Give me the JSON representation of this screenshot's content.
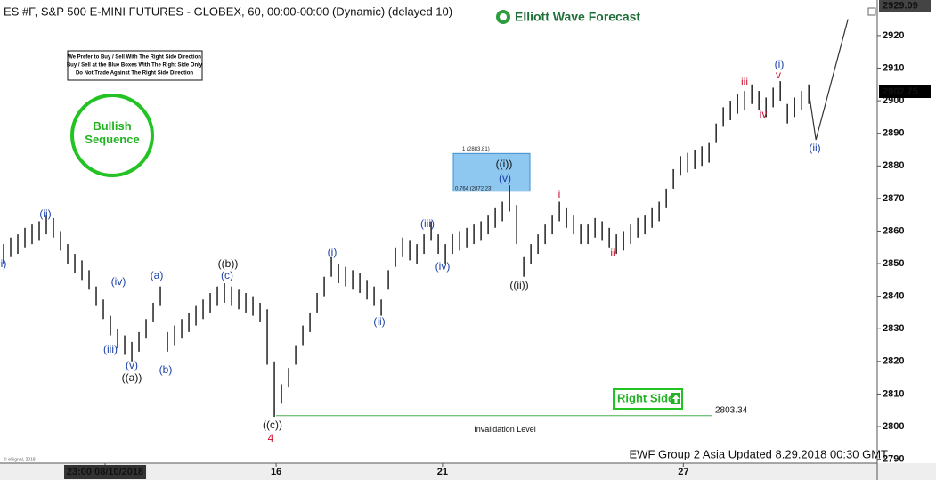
{
  "chart_data": {
    "type": "ohlc",
    "title": "ES #F, S&P 500 E-MINI FUTURES - GLOBEX, 60, 00:00-00:00 (Dynamic) (delayed 10)",
    "logo": "Elliott Wave Forecast",
    "notice": [
      "We Prefer to Buy / Sell With The Right Side Direction",
      "Buy / Sell at the Blue Boxes With The Right Side Only",
      "Do Not Trade Against The Right Side Direction"
    ],
    "badge": "Bullish Sequence",
    "right_side": "Right Side",
    "footer": "EWF Group 2 Asia Updated 8.29.2018 00:30 GMT",
    "copyright": "© eSignal, 2018",
    "color": "#222222",
    "x": [
      0,
      1,
      2,
      3,
      4,
      5,
      6,
      7,
      8,
      9,
      10,
      11,
      12,
      13,
      14,
      15,
      16,
      17,
      18,
      19,
      20,
      21,
      22,
      23,
      24,
      25,
      26,
      27,
      28,
      29,
      30,
      31,
      32,
      33,
      34,
      35,
      36,
      37,
      38,
      39,
      40,
      41,
      42,
      43,
      44,
      45,
      46,
      47,
      48,
      49,
      50,
      51,
      52,
      53,
      54,
      55,
      56,
      57,
      58,
      59,
      60,
      61,
      62,
      63,
      64,
      65,
      66,
      67,
      68,
      69,
      70,
      71,
      72,
      73,
      74,
      75,
      76,
      77,
      78,
      79,
      80,
      81,
      82,
      83,
      84,
      85,
      86,
      87,
      88,
      89,
      90,
      91,
      92,
      93,
      94,
      95,
      96,
      97,
      98,
      99,
      100,
      101,
      102,
      103,
      104,
      105,
      106,
      107,
      108,
      109,
      110,
      111,
      112,
      113
    ],
    "high": [
      2856,
      2858,
      2859,
      2861,
      2862,
      2863,
      2865,
      2864,
      2860,
      2856,
      2853,
      2851,
      2848,
      2843,
      2839,
      2834,
      2830,
      2828,
      2826,
      2829,
      2833,
      2838,
      2843,
      2829,
      2831,
      2833,
      2835,
      2837,
      2839,
      2841,
      2843,
      2844,
      2843,
      2842,
      2841,
      2840,
      2838,
      2836,
      2820,
      2813,
      2818,
      2825,
      2831,
      2835,
      2841,
      2846,
      2852,
      2850,
      2849,
      2848,
      2847,
      2845,
      2843,
      2839,
      2848,
      2855,
      2858,
      2857,
      2856,
      2859,
      2863,
      2859,
      2856,
      2859,
      2860,
      2861,
      2862,
      2863,
      2865,
      2867,
      2869,
      2874,
      2868,
      2852,
      2856,
      2859,
      2862,
      2865,
      2869,
      2867,
      2865,
      2862,
      2862,
      2864,
      2863,
      2861,
      2859,
      2860,
      2862,
      2864,
      2865,
      2867,
      2869,
      2873,
      2879,
      2883,
      2884,
      2885,
      2886,
      2887,
      2893,
      2898,
      2900,
      2902,
      2903,
      2905,
      2903,
      2901,
      2904,
      2906,
      2899,
      2901,
      2903,
      2905
    ],
    "low": [
      2850,
      2852,
      2853,
      2855,
      2856,
      2857,
      2859,
      2858,
      2854,
      2850,
      2847,
      2845,
      2842,
      2837,
      2833,
      2828,
      2824,
      2822,
      2820,
      2823,
      2827,
      2832,
      2837,
      2823,
      2825,
      2827,
      2829,
      2831,
      2833,
      2835,
      2837,
      2838,
      2837,
      2836,
      2835,
      2834,
      2832,
      2819,
      2803,
      2807,
      2812,
      2819,
      2825,
      2829,
      2835,
      2840,
      2846,
      2844,
      2843,
      2842,
      2841,
      2839,
      2837,
      2834,
      2842,
      2849,
      2852,
      2851,
      2850,
      2853,
      2857,
      2853,
      2850,
      2853,
      2854,
      2855,
      2856,
      2857,
      2859,
      2861,
      2863,
      2866,
      2856,
      2846,
      2850,
      2853,
      2856,
      2859,
      2863,
      2861,
      2859,
      2856,
      2856,
      2858,
      2857,
      2855,
      2853,
      2854,
      2856,
      2858,
      2859,
      2861,
      2863,
      2867,
      2873,
      2877,
      2878,
      2879,
      2880,
      2881,
      2887,
      2892,
      2894,
      2896,
      2897,
      2899,
      2897,
      2895,
      2898,
      2900,
      2893,
      2895,
      2897,
      2899
    ],
    "xlim": [
      -0.5,
      122.6
    ],
    "ylim": [
      2788.8,
      2930.9
    ],
    "yticks": [
      2790,
      2800,
      2810,
      2820,
      2830,
      2840,
      2850,
      2860,
      2870,
      2880,
      2890,
      2900,
      2910,
      2920
    ],
    "xticks": [
      {
        "value": 14.25,
        "label": "23:00 08/10/2018"
      },
      {
        "value": 38.25,
        "label": "16"
      },
      {
        "value": 61.6,
        "label": "21"
      },
      {
        "value": 95.4,
        "label": "27"
      }
    ],
    "price_labels": [
      2929.09,
      2902.75
    ],
    "fib_box": {
      "top": 2883.81,
      "bottom": 2872.23,
      "top_label": "1 (2883.81)",
      "bottom_label": "0.764 (2872.23)",
      "color": "#8ec8f0"
    },
    "invalidation": {
      "value": 2803.34,
      "label": "Invalidation Level",
      "color": "#4caf50"
    },
    "projection": {
      "x": [
        113,
        114,
        118.5
      ],
      "y": [
        2902.75,
        2888,
        2925
      ]
    },
    "annotations": [
      {
        "text": "i)",
        "color": "#1a3fa8"
      },
      {
        "text": "(ii)",
        "color": "#1a3fa8"
      },
      {
        "text": "(iii)",
        "color": "#1a3fa8"
      },
      {
        "text": "(iv)",
        "color": "#1a3fa8"
      },
      {
        "text": "(v)",
        "color": "#1a3fa8"
      },
      {
        "text": "((a))",
        "color": "#111111"
      },
      {
        "text": "(a)",
        "color": "#1a3fa8"
      },
      {
        "text": "(b)",
        "color": "#1a3fa8"
      },
      {
        "text": "((b))",
        "color": "#111111"
      },
      {
        "text": "(c)",
        "color": "#1a3fa8"
      },
      {
        "text": "((c))",
        "color": "#111111"
      },
      {
        "text": "4",
        "color": "#c8102e"
      },
      {
        "text": "(i)",
        "color": "#1a3fa8"
      },
      {
        "text": "(ii)",
        "color": "#1a3fa8"
      },
      {
        "text": "(iii)",
        "color": "#1a3fa8"
      },
      {
        "text": "(iv)",
        "color": "#1a3fa8"
      },
      {
        "text": "((i))",
        "color": "#111111"
      },
      {
        "text": "(v)",
        "color": "#1a3fa8"
      },
      {
        "text": "((ii))",
        "color": "#111111"
      },
      {
        "text": "i",
        "color": "#c8102e"
      },
      {
        "text": "ii",
        "color": "#c8102e"
      },
      {
        "text": "iii",
        "color": "#c8102e"
      },
      {
        "text": "iv",
        "color": "#c8102e"
      },
      {
        "text": "v",
        "color": "#c8102e"
      },
      {
        "text": "(i)",
        "color": "#1a3fa8"
      },
      {
        "text": "(ii)",
        "color": "#1a3fa8"
      }
    ]
  }
}
